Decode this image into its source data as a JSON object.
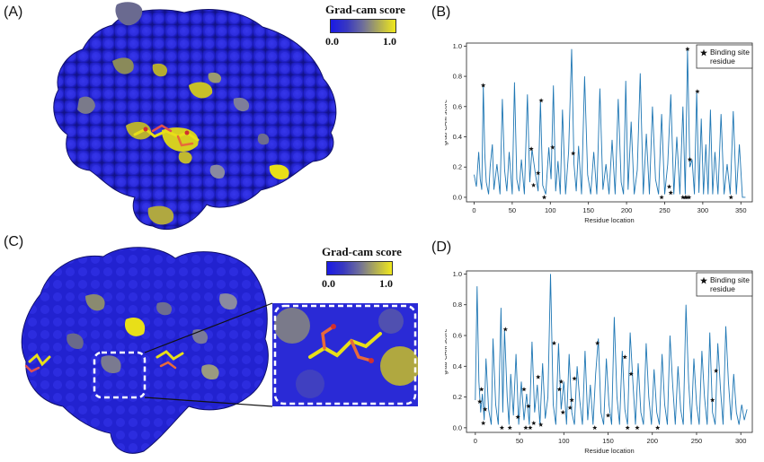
{
  "panels": {
    "a": "(A)",
    "b": "(B)",
    "c": "(C)",
    "d": "(D)"
  },
  "colorbar": {
    "title": "Grad-cam score",
    "title_c": "Grad-cam score",
    "min_label": "0.0",
    "max_label": "1.0",
    "low_color": "#1a1ae6",
    "high_color": "#f0e81c"
  },
  "colors": {
    "line": "#1f77b4",
    "star": "#111111",
    "protein_blue": "#2424d8",
    "protein_gray": "#7a7a9a",
    "protein_yellow": "#d8d21c"
  },
  "chart_data": [
    {
      "id": "B",
      "type": "line",
      "title": "",
      "xlabel": "Residue location",
      "ylabel": "grad-CAM score",
      "xlim": [
        -10,
        365
      ],
      "ylim": [
        -0.03,
        1.02
      ],
      "xticks": [
        0,
        50,
        100,
        150,
        200,
        250,
        300,
        350
      ],
      "yticks": [
        0.0,
        0.2,
        0.4,
        0.6,
        0.8,
        1.0
      ],
      "xtick_labels": [
        "0",
        "50",
        "100",
        "150",
        "200",
        "250",
        "300",
        "350"
      ],
      "ytick_labels": [
        "0.0",
        "0.2",
        "0.4",
        "0.6",
        "0.8",
        "1.0"
      ],
      "legend": {
        "label": "Binding site residue",
        "line1": "Binding site",
        "line2": "residue",
        "position": "top-right"
      },
      "grid": false,
      "series": [
        {
          "x": [
            0,
            3,
            6,
            8,
            10,
            12,
            14,
            16,
            19,
            21,
            24,
            26,
            30,
            34,
            37,
            40,
            43,
            46,
            50,
            53,
            56,
            59,
            62,
            66,
            70,
            73,
            76,
            80,
            84,
            87,
            90,
            94,
            98,
            101,
            104,
            107,
            110,
            113,
            116,
            120,
            124,
            128,
            131,
            134,
            137,
            141,
            145,
            149,
            153,
            157,
            161,
            165,
            169,
            173,
            177,
            181,
            185,
            189,
            193,
            196,
            199,
            202,
            206,
            210,
            214,
            218,
            222,
            226,
            230,
            234,
            238,
            242,
            246,
            250,
            254,
            258,
            262,
            266,
            270,
            274,
            277,
            280,
            283,
            286,
            289,
            292,
            295,
            298,
            301,
            304,
            307,
            310,
            313,
            316,
            320,
            324,
            328,
            332,
            336,
            340,
            344,
            348,
            352,
            356
          ],
          "y": [
            0.15,
            0.07,
            0.3,
            0.12,
            0.05,
            0.74,
            0.28,
            0.1,
            0.02,
            0.2,
            0.35,
            0.05,
            0.22,
            0.02,
            0.65,
            0.18,
            0.04,
            0.3,
            0.02,
            0.76,
            0.12,
            0.04,
            0.25,
            0.02,
            0.68,
            0.1,
            0.32,
            0.17,
            0.04,
            0.64,
            0.08,
            0.02,
            0.33,
            0.12,
            0.74,
            0.04,
            0.24,
            0.02,
            0.58,
            0.02,
            0.3,
            0.98,
            0.22,
            0.04,
            0.34,
            0.02,
            0.8,
            0.15,
            0.02,
            0.3,
            0.02,
            0.72,
            0.05,
            0.22,
            0.02,
            0.38,
            0.02,
            0.65,
            0.1,
            0.02,
            0.77,
            0.05,
            0.5,
            0.02,
            0.18,
            0.82,
            0.02,
            0.42,
            0.02,
            0.6,
            0.12,
            0.02,
            0.55,
            0.02,
            0.22,
            0.68,
            0.02,
            0.4,
            0.02,
            0.6,
            0.02,
            0.98,
            0.2,
            0.25,
            0.02,
            0.7,
            0.03,
            0.52,
            0.02,
            0.35,
            0.02,
            0.58,
            0.02,
            0.3,
            0.02,
            0.55,
            0.02,
            0.22,
            0.02,
            0.57,
            0.02,
            0.35,
            0.0,
            0.0
          ]
        }
      ],
      "binding_sites": [
        {
          "x": 12,
          "y": 0.74
        },
        {
          "x": 75,
          "y": 0.32
        },
        {
          "x": 78,
          "y": 0.08
        },
        {
          "x": 84,
          "y": 0.16
        },
        {
          "x": 88,
          "y": 0.64
        },
        {
          "x": 92,
          "y": 0.0
        },
        {
          "x": 103,
          "y": 0.33
        },
        {
          "x": 130,
          "y": 0.29
        },
        {
          "x": 246,
          "y": 0.0
        },
        {
          "x": 256,
          "y": 0.07
        },
        {
          "x": 258,
          "y": 0.03
        },
        {
          "x": 274,
          "y": 0.0
        },
        {
          "x": 277,
          "y": 0.0
        },
        {
          "x": 279,
          "y": 0.0
        },
        {
          "x": 282,
          "y": 0.0
        },
        {
          "x": 280,
          "y": 0.98
        },
        {
          "x": 283,
          "y": 0.25
        },
        {
          "x": 293,
          "y": 0.7
        },
        {
          "x": 337,
          "y": 0.0
        }
      ]
    },
    {
      "id": "D",
      "type": "line",
      "title": "",
      "xlabel": "Residue location",
      "ylabel": "grad-CAM score",
      "xlim": [
        -10,
        313
      ],
      "ylim": [
        -0.03,
        1.02
      ],
      "xticks": [
        0,
        50,
        100,
        150,
        200,
        250,
        300
      ],
      "yticks": [
        0.0,
        0.2,
        0.4,
        0.6,
        0.8,
        1.0
      ],
      "xtick_labels": [
        "0",
        "50",
        "100",
        "150",
        "200",
        "250",
        "300"
      ],
      "ytick_labels": [
        "0.0",
        "0.2",
        "0.4",
        "0.6",
        "0.8",
        "1.0"
      ],
      "legend": {
        "label": "Binding site residue",
        "line1": "Binding site",
        "line2": "residue",
        "position": "top-right"
      },
      "grid": false,
      "series": [
        {
          "x": [
            0,
            2,
            4,
            6,
            8,
            10,
            12,
            15,
            18,
            20,
            23,
            26,
            29,
            31,
            33,
            36,
            38,
            40,
            43,
            46,
            49,
            52,
            55,
            58,
            61,
            64,
            67,
            70,
            73,
            76,
            79,
            82,
            85,
            88,
            91,
            94,
            97,
            100,
            103,
            106,
            109,
            112,
            115,
            118,
            121,
            124,
            127,
            130,
            133,
            136,
            139,
            142,
            145,
            148,
            151,
            154,
            157,
            160,
            163,
            166,
            169,
            172,
            175,
            178,
            181,
            184,
            187,
            190,
            193,
            196,
            199,
            202,
            205,
            208,
            211,
            214,
            217,
            220,
            223,
            226,
            229,
            232,
            235,
            238,
            241,
            244,
            247,
            250,
            253,
            256,
            259,
            262,
            265,
            268,
            271,
            274,
            277,
            280,
            283,
            286,
            289,
            292,
            295,
            298,
            301,
            304,
            307
          ],
          "y": [
            0.18,
            0.92,
            0.3,
            0.1,
            0.22,
            0.05,
            0.45,
            0.12,
            0.02,
            0.58,
            0.15,
            0.02,
            0.78,
            0.1,
            0.64,
            0.2,
            0.02,
            0.35,
            0.08,
            0.48,
            0.02,
            0.3,
            0.05,
            0.22,
            0.02,
            0.56,
            0.1,
            0.28,
            0.02,
            0.42,
            0.06,
            0.2,
            1.0,
            0.15,
            0.02,
            0.55,
            0.12,
            0.3,
            0.02,
            0.48,
            0.1,
            0.02,
            0.4,
            0.18,
            0.02,
            0.5,
            0.05,
            0.28,
            0.02,
            0.35,
            0.58,
            0.1,
            0.02,
            0.45,
            0.15,
            0.02,
            0.72,
            0.2,
            0.02,
            0.5,
            0.12,
            0.02,
            0.62,
            0.3,
            0.02,
            0.42,
            0.1,
            0.02,
            0.55,
            0.2,
            0.02,
            0.38,
            0.1,
            0.02,
            0.48,
            0.15,
            0.02,
            0.6,
            0.28,
            0.02,
            0.4,
            0.12,
            0.02,
            0.8,
            0.3,
            0.02,
            0.45,
            0.15,
            0.02,
            0.5,
            0.2,
            0.02,
            0.62,
            0.1,
            0.02,
            0.55,
            0.25,
            0.02,
            0.66,
            0.3,
            0.05,
            0.35,
            0.1,
            0.02,
            0.15,
            0.05,
            0.12
          ]
        }
      ],
      "binding_sites": [
        {
          "x": 5,
          "y": 0.17
        },
        {
          "x": 7,
          "y": 0.25
        },
        {
          "x": 9,
          "y": 0.03
        },
        {
          "x": 11,
          "y": 0.12
        },
        {
          "x": 30,
          "y": 0.0
        },
        {
          "x": 34,
          "y": 0.64
        },
        {
          "x": 39,
          "y": 0.0
        },
        {
          "x": 48,
          "y": 0.07
        },
        {
          "x": 55,
          "y": 0.25
        },
        {
          "x": 57,
          "y": 0.0
        },
        {
          "x": 60,
          "y": 0.14
        },
        {
          "x": 62,
          "y": 0.0
        },
        {
          "x": 66,
          "y": 0.03
        },
        {
          "x": 71,
          "y": 0.33
        },
        {
          "x": 74,
          "y": 0.02
        },
        {
          "x": 89,
          "y": 0.55
        },
        {
          "x": 95,
          "y": 0.25
        },
        {
          "x": 97,
          "y": 0.3
        },
        {
          "x": 99,
          "y": 0.1
        },
        {
          "x": 107,
          "y": 0.13
        },
        {
          "x": 109,
          "y": 0.18
        },
        {
          "x": 112,
          "y": 0.32
        },
        {
          "x": 135,
          "y": 0.0
        },
        {
          "x": 138,
          "y": 0.55
        },
        {
          "x": 150,
          "y": 0.08
        },
        {
          "x": 169,
          "y": 0.46
        },
        {
          "x": 172,
          "y": 0.0
        },
        {
          "x": 176,
          "y": 0.35
        },
        {
          "x": 183,
          "y": 0.0
        },
        {
          "x": 206,
          "y": 0.0
        },
        {
          "x": 268,
          "y": 0.18
        },
        {
          "x": 272,
          "y": 0.37
        }
      ]
    }
  ]
}
